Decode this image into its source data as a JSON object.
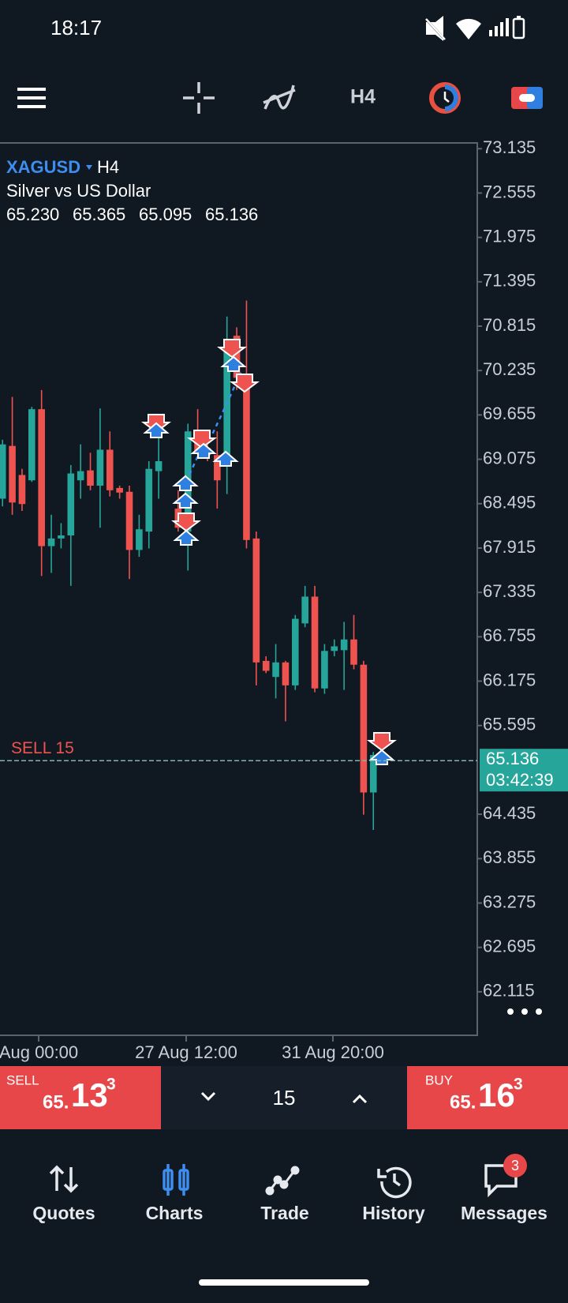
{
  "status_bar": {
    "time": "18:17"
  },
  "toolbar": {
    "timeframe": "H4"
  },
  "chart_data": {
    "type": "candlestick",
    "symbol": "XAGUSD",
    "timeframe": "H4",
    "description": "Silver vs US Dollar",
    "ohlc": [
      "65.230",
      "65.365",
      "65.095",
      "65.136"
    ],
    "candles": [
      [
        68.56,
        69.33,
        68.46,
        69.27
      ],
      [
        69.25,
        69.89,
        68.35,
        68.51
      ],
      [
        68.87,
        68.95,
        68.4,
        68.49
      ],
      [
        68.8,
        69.76,
        68.78,
        69.73
      ],
      [
        69.73,
        69.98,
        67.55,
        67.94
      ],
      [
        67.94,
        68.35,
        67.59,
        68.04
      ],
      [
        68.04,
        68.24,
        67.91,
        68.08
      ],
      [
        68.08,
        69.0,
        67.42,
        68.89
      ],
      [
        68.8,
        69.27,
        68.56,
        68.92
      ],
      [
        68.93,
        69.16,
        68.67,
        68.73
      ],
      [
        68.73,
        69.74,
        68.18,
        69.2
      ],
      [
        69.2,
        69.44,
        68.59,
        68.67
      ],
      [
        68.7,
        68.73,
        68.56,
        68.64
      ],
      [
        68.65,
        68.73,
        67.51,
        67.89
      ],
      [
        67.89,
        68.35,
        67.8,
        68.16
      ],
      [
        68.13,
        69.05,
        67.91,
        68.95
      ],
      [
        68.92,
        69.44,
        68.56,
        69.05
      ],
      null,
      [
        68.43,
        68.67,
        68.13,
        68.18
      ],
      [
        68.13,
        69.54,
        67.62,
        69.44
      ],
      [
        69.38,
        69.73,
        69.13,
        69.16
      ],
      [
        69.22,
        69.27,
        69.05,
        69.13
      ],
      [
        69.13,
        69.44,
        68.43,
        68.8
      ],
      [
        69.0,
        70.94,
        68.62,
        70.49
      ],
      [
        70.69,
        70.8,
        69.98,
        70.14
      ],
      [
        70.14,
        71.15,
        67.91,
        68.02
      ],
      [
        68.04,
        68.13,
        66.12,
        66.42
      ],
      [
        66.44,
        66.5,
        66.28,
        66.31
      ],
      [
        66.23,
        66.66,
        65.95,
        66.42
      ],
      [
        66.42,
        66.44,
        65.65,
        66.12
      ],
      [
        66.12,
        67.04,
        66.06,
        66.99
      ],
      [
        66.93,
        67.42,
        66.88,
        67.28
      ],
      [
        67.28,
        67.42,
        66.03,
        66.08
      ],
      [
        66.08,
        66.66,
        66.01,
        66.57
      ],
      [
        66.57,
        66.72,
        66.5,
        66.63
      ],
      [
        66.58,
        66.95,
        66.06,
        66.72
      ],
      [
        66.72,
        67.04,
        66.33,
        66.39
      ],
      [
        66.39,
        66.44,
        64.43,
        64.72
      ],
      [
        64.72,
        65.25,
        64.23,
        65.21
      ]
    ],
    "up_color": "#26a69a",
    "down_color": "#ef5350",
    "ylim": [
      61.546,
      73.21
    ],
    "yticks": [
      73.135,
      72.555,
      71.975,
      71.395,
      70.815,
      70.235,
      69.655,
      69.075,
      68.495,
      67.915,
      67.335,
      66.755,
      66.175,
      65.595,
      64.435,
      63.855,
      63.275,
      62.695,
      62.115
    ],
    "xlabels": [
      "Aug 00:00",
      "27 Aug 12:00",
      "31 Aug 20:00"
    ],
    "current_price": 65.136,
    "countdown": "03:42:39",
    "position_label": "SELL 15"
  },
  "trade_panel": {
    "sell": {
      "label": "SELL",
      "price_big": "65.",
      "price_main": "13",
      "price_sup": "3"
    },
    "volume": "15",
    "buy": {
      "label": "BUY",
      "price_big": "65.",
      "price_main": "16",
      "price_sup": "3"
    }
  },
  "nav": {
    "items": [
      "Quotes",
      "Charts",
      "Trade",
      "History",
      "Messages"
    ],
    "badge": "3"
  }
}
